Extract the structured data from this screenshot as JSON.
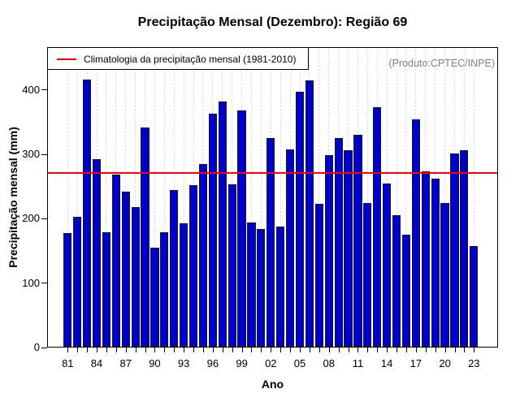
{
  "title": "Precipitação Mensal (Dezembro): Região 69",
  "legend": {
    "label": "Climatologia da precipitação mensal (1981-2010)",
    "line_color": "#FF0000",
    "position": "top-left"
  },
  "watermark": "(Produto:CPTEC/INPE)",
  "axes": {
    "xlabel": "Ano",
    "ylabel": "Precipitação mensal (mm)"
  },
  "chart_data": {
    "type": "bar",
    "title": "Precipitação Mensal (Dezembro): Região 69",
    "xlabel": "Ano",
    "ylabel": "Precipitação mensal (mm)",
    "x": [
      1981,
      1982,
      1983,
      1984,
      1985,
      1986,
      1987,
      1988,
      1989,
      1990,
      1991,
      1992,
      1993,
      1994,
      1995,
      1996,
      1997,
      1998,
      1999,
      2000,
      2001,
      2002,
      2003,
      2004,
      2005,
      2006,
      2007,
      2008,
      2009,
      2010,
      2011,
      2012,
      2013,
      2014,
      2015,
      2016,
      2017,
      2018,
      2019,
      2020,
      2021,
      2022,
      2023
    ],
    "values": [
      177,
      203,
      415,
      292,
      179,
      268,
      242,
      218,
      341,
      155,
      179,
      244,
      192,
      251,
      285,
      363,
      382,
      253,
      368,
      194,
      183,
      325,
      187,
      307,
      397,
      414,
      223,
      298,
      325,
      306,
      330,
      224,
      373,
      254,
      205,
      175,
      354,
      273,
      262,
      224,
      301,
      306,
      157
    ],
    "x_tick_labels": [
      "81",
      "84",
      "87",
      "90",
      "93",
      "96",
      "99",
      "02",
      "05",
      "08",
      "11",
      "14",
      "17",
      "20",
      "23"
    ],
    "x_tick_step": 3,
    "yticks": [
      0,
      100,
      200,
      300,
      400
    ],
    "ylim": [
      0,
      466
    ],
    "bar_color": "#0000CD",
    "bar_border_color": "#1a1a1a",
    "reference_line": {
      "value": 271,
      "color": "#FF0000",
      "label": "Climatologia da precipitação mensal (1981-2010)"
    },
    "grid": {
      "vertical": true,
      "style": "dotted",
      "color": "#c9c9c9"
    },
    "legend_position": "top-left",
    "background": "#ffffff"
  }
}
